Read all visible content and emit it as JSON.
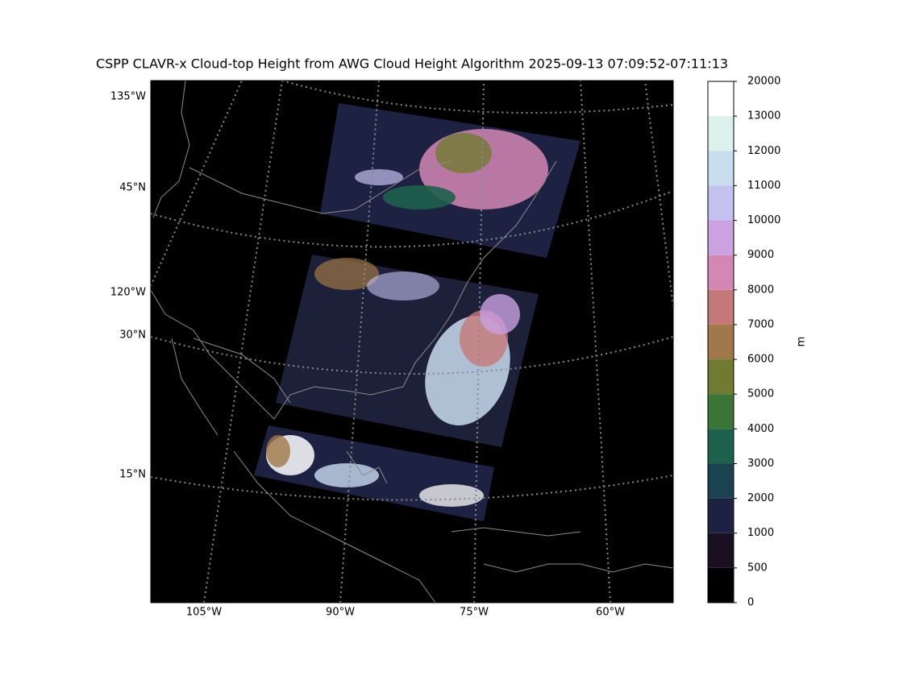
{
  "title": "CSPP CLAVR-x Cloud-top Height from AWG Cloud Height Algorithm 2025-09-13 07:09:52-07:11:13",
  "map": {
    "lon_labels": [
      "105°W",
      "90°W",
      "75°W",
      "60°W"
    ],
    "lat_labels": [
      "135°W",
      "45°N",
      "120°W",
      "30°N",
      "15°N"
    ]
  },
  "colorbar": {
    "label": "m",
    "ticks": [
      0,
      500,
      1000,
      2000,
      3000,
      4000,
      5000,
      6000,
      7000,
      8000,
      9000,
      10000,
      11000,
      12000,
      13000,
      20000
    ],
    "colors": [
      "#000000",
      "#1b0f22",
      "#1e2242",
      "#1a4250",
      "#1d604c",
      "#3b7636",
      "#707b31",
      "#a07849",
      "#c57878",
      "#d587b4",
      "#cba1e2",
      "#c4c1f1",
      "#c9ddf1",
      "#ddf1ed",
      "#ffffff"
    ]
  }
}
